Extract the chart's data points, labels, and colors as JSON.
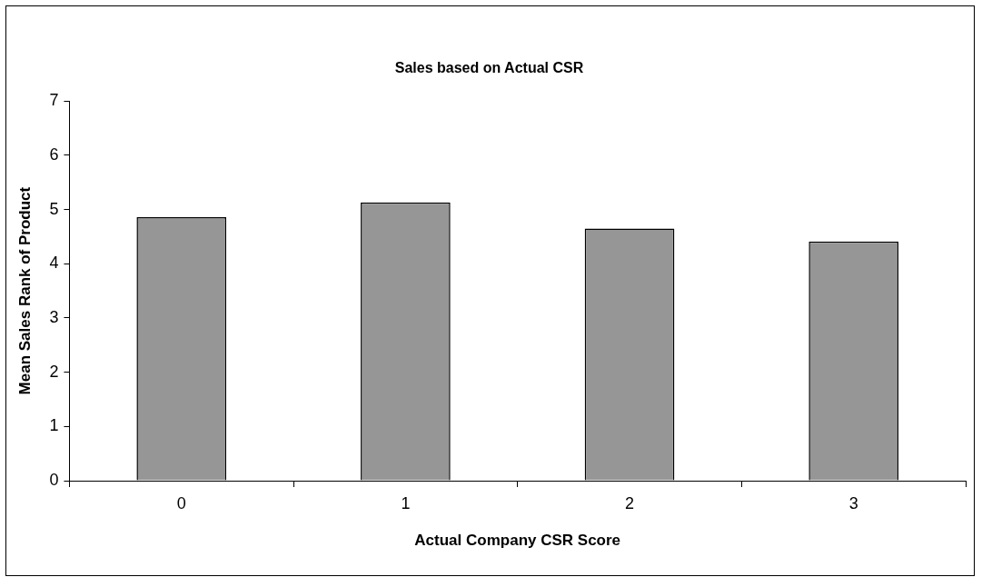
{
  "chart_data": {
    "type": "bar",
    "title": "Sales based on Actual CSR",
    "xlabel": "Actual Company CSR Score",
    "ylabel": "Mean Sales Rank of Product",
    "categories": [
      "0",
      "1",
      "2",
      "3"
    ],
    "values": [
      4.86,
      5.13,
      4.65,
      4.41
    ],
    "color": "#969696",
    "ylim": [
      0,
      7
    ],
    "yticks": [
      0,
      1,
      2,
      3,
      4,
      5,
      6,
      7
    ]
  }
}
